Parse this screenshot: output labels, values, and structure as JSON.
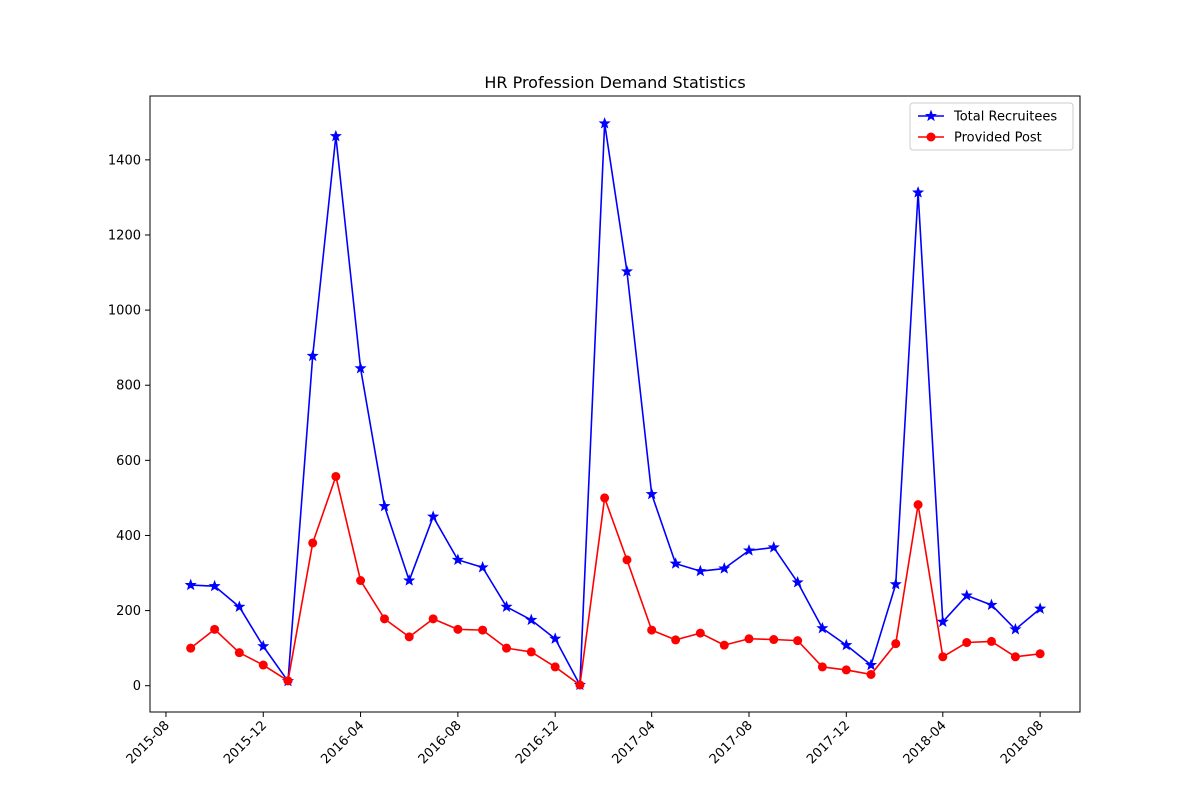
{
  "chart_data": {
    "type": "line",
    "title": "HR Profession Demand Statistics",
    "xlabel": "",
    "ylabel": "",
    "x": [
      "2015-09",
      "2015-10",
      "2015-11",
      "2015-12",
      "2016-01",
      "2016-02",
      "2016-03",
      "2016-04",
      "2016-05",
      "2016-06",
      "2016-07",
      "2016-08",
      "2016-09",
      "2016-10",
      "2016-11",
      "2016-12",
      "2017-01",
      "2017-02",
      "2017-03",
      "2017-04",
      "2017-05",
      "2017-06",
      "2017-07",
      "2017-08",
      "2017-09",
      "2017-10",
      "2017-11",
      "2017-12",
      "2018-01",
      "2018-02",
      "2018-03",
      "2018-04",
      "2018-05",
      "2018-06",
      "2018-07",
      "2018-08"
    ],
    "series": [
      {
        "name": "Total Recruitees",
        "color": "#0000ff",
        "marker": "star",
        "values": [
          268,
          265,
          210,
          105,
          12,
          878,
          1463,
          845,
          478,
          280,
          450,
          335,
          315,
          210,
          175,
          125,
          2,
          1497,
          1103,
          510,
          325,
          305,
          312,
          360,
          368,
          275,
          153,
          108,
          55,
          270,
          1313,
          170,
          240,
          215,
          150,
          205
        ]
      },
      {
        "name": "Provided Post",
        "color": "#ff0000",
        "marker": "circle",
        "values": [
          100,
          150,
          88,
          55,
          13,
          380,
          557,
          280,
          178,
          130,
          178,
          150,
          148,
          100,
          90,
          50,
          2,
          500,
          335,
          148,
          122,
          140,
          108,
          125,
          123,
          120,
          50,
          42,
          30,
          112,
          482,
          77,
          115,
          118,
          77,
          85
        ]
      }
    ],
    "xticks": [
      "2015-08",
      "2015-12",
      "2016-04",
      "2016-08",
      "2016-12",
      "2017-04",
      "2017-08",
      "2017-12",
      "2018-04",
      "2018-08"
    ],
    "yticks": [
      0,
      200,
      400,
      600,
      800,
      1000,
      1200,
      1400
    ],
    "xlim": [
      "2015-07-12",
      "2018-09-20"
    ],
    "ylim": [
      -70,
      1570
    ],
    "legend_position": "top-right",
    "grid": false
  }
}
